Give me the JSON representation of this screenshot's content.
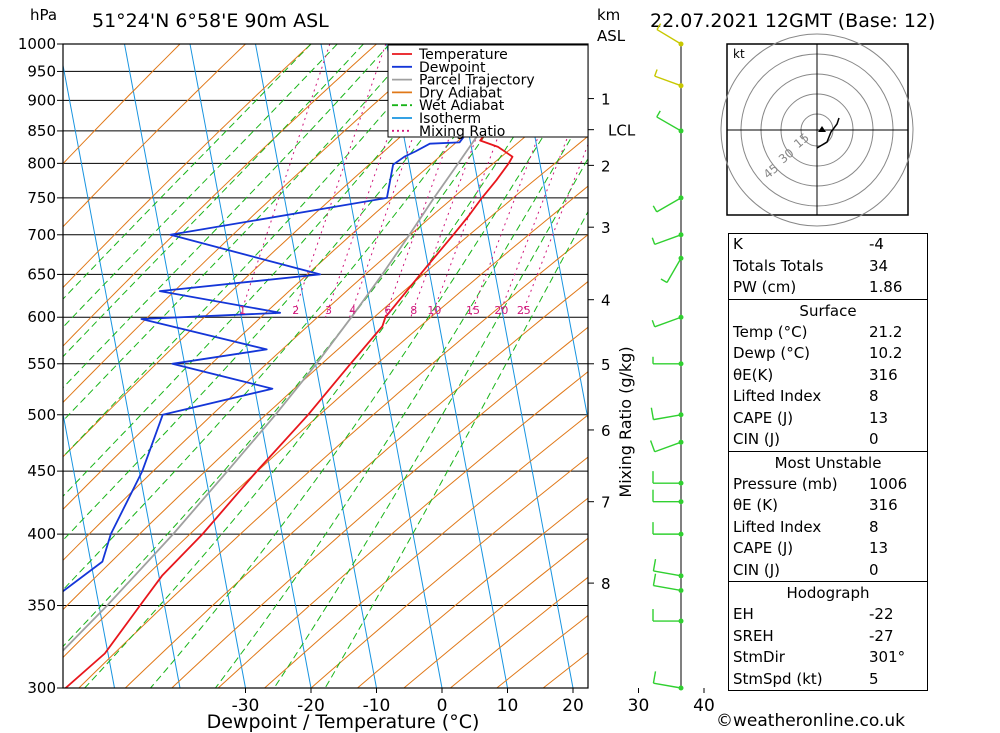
{
  "header": {
    "pressure_unit": "hPa",
    "location": "51°24'N  6°58'E  90m  ASL",
    "height_unit": "km",
    "height_unit2": "ASL",
    "datetime": "22.07.2021  12GMT  (Base: 12)"
  },
  "footer": {
    "copyright": "©weatheronline.co.uk"
  },
  "chart_data": {
    "type": "line",
    "title": "",
    "xlabel": "Dewpoint / Temperature (°C)",
    "ylabel": "hPa",
    "y2label": "Mixing Ratio (g/kg)",
    "xlim": [
      -40,
      40
    ],
    "ylim": [
      1000,
      300
    ],
    "y_scale": "log",
    "skew": true,
    "x_ticks": [
      "-30",
      "-20",
      "-10",
      "0",
      "10",
      "20",
      "30",
      "40"
    ],
    "pressure_ticks": [
      300,
      350,
      400,
      450,
      500,
      550,
      600,
      650,
      700,
      750,
      800,
      850,
      900,
      950,
      1000
    ],
    "height_ticks": [
      {
        "label": "8",
        "p": 365
      },
      {
        "label": "7",
        "p": 425
      },
      {
        "label": "6",
        "p": 486
      },
      {
        "label": "5",
        "p": 550
      },
      {
        "label": "4",
        "p": 620
      },
      {
        "label": "3",
        "p": 710
      },
      {
        "label": "2",
        "p": 797
      },
      {
        "label": "LCL",
        "p": 852
      },
      {
        "label": "1",
        "p": 903
      }
    ],
    "mixing_ratio_labels": [
      "1",
      "2",
      "3",
      "4",
      "6",
      "8",
      "10",
      "15",
      "20",
      "25"
    ],
    "mixing_ratio_label_pressure": 600,
    "legend": [
      {
        "name": "Temperature",
        "color": "#e8161c"
      },
      {
        "name": "Dewpoint",
        "color": "#1436d8"
      },
      {
        "name": "Parcel Trajectory",
        "color": "#a0a0a0"
      },
      {
        "name": "Dry Adiabat",
        "color": "#e07818"
      },
      {
        "name": "Wet Adiabat",
        "color": "#18b418"
      },
      {
        "name": "Isotherm",
        "color": "#1894e0"
      },
      {
        "name": "Mixing Ratio",
        "color": "#d0187c"
      }
    ],
    "legend_position": "top-right",
    "series": [
      {
        "name": "Temperature",
        "color": "#e8161c",
        "points": [
          [
            1000,
            21.2
          ],
          [
            975,
            19
          ],
          [
            950,
            16.8
          ],
          [
            925,
            15
          ],
          [
            900,
            13
          ],
          [
            875,
            11.2
          ],
          [
            850,
            9.5
          ],
          [
            835,
            8.6
          ],
          [
            825,
            11.5
          ],
          [
            810,
            14
          ],
          [
            800,
            13.6
          ],
          [
            775,
            12.2
          ],
          [
            750,
            10.5
          ],
          [
            725,
            9
          ],
          [
            700,
            7.2
          ],
          [
            650,
            3.3
          ],
          [
            600,
            -0.8
          ],
          [
            590,
            -1
          ],
          [
            550,
            -4.8
          ],
          [
            500,
            -9.8
          ],
          [
            450,
            -16
          ],
          [
            400,
            -22.5
          ],
          [
            370,
            -27.5
          ],
          [
            350,
            -30
          ],
          [
            320,
            -34
          ],
          [
            300,
            -39
          ]
        ]
      },
      {
        "name": "Dewpoint",
        "color": "#1436d8",
        "points": [
          [
            1000,
            10.2
          ],
          [
            975,
            10
          ],
          [
            950,
            10
          ],
          [
            925,
            9.3
          ],
          [
            900,
            8.3
          ],
          [
            875,
            7.5
          ],
          [
            850,
            6.5
          ],
          [
            832,
            5.5
          ],
          [
            830,
            1
          ],
          [
            818,
            -1
          ],
          [
            810,
            -2.5
          ],
          [
            798,
            -4
          ],
          [
            750,
            -4
          ],
          [
            700,
            -36
          ],
          [
            650,
            -12
          ],
          [
            630,
            -36
          ],
          [
            605,
            -17
          ],
          [
            598,
            -38
          ],
          [
            565,
            -18
          ],
          [
            550,
            -32
          ],
          [
            525,
            -16
          ],
          [
            500,
            -32
          ],
          [
            450,
            -33.5
          ],
          [
            400,
            -36.5
          ],
          [
            380,
            -37
          ],
          [
            345,
            -46
          ],
          [
            300,
            -50
          ]
        ]
      },
      {
        "name": "Parcel Trajectory",
        "color": "#a0a0a0",
        "points": [
          [
            1000,
            21.2
          ],
          [
            950,
            16.8
          ],
          [
            900,
            12.5
          ],
          [
            850,
            8.4
          ],
          [
            800,
            5.9
          ],
          [
            750,
            3.2
          ],
          [
            700,
            0.5
          ],
          [
            650,
            -2.5
          ],
          [
            600,
            -6
          ],
          [
            550,
            -10
          ],
          [
            500,
            -14.8
          ],
          [
            450,
            -20.5
          ],
          [
            400,
            -27
          ],
          [
            350,
            -35
          ],
          [
            300,
            -45
          ]
        ]
      }
    ],
    "wind_barbs": [
      {
        "p": 1000,
        "dir": 301,
        "kt": 5
      },
      {
        "p": 925,
        "dir": 290,
        "kt": 5
      },
      {
        "p": 850,
        "dir": 300,
        "kt": 5
      },
      {
        "p": 750,
        "dir": 240,
        "kt": 5
      },
      {
        "p": 700,
        "dir": 250,
        "kt": 5
      },
      {
        "p": 670,
        "dir": 210,
        "kt": 5
      },
      {
        "p": 600,
        "dir": 250,
        "kt": 5
      },
      {
        "p": 550,
        "dir": 270,
        "kt": 5
      },
      {
        "p": 500,
        "dir": 260,
        "kt": 10
      },
      {
        "p": 475,
        "dir": 250,
        "kt": 10
      },
      {
        "p": 440,
        "dir": 270,
        "kt": 10
      },
      {
        "p": 425,
        "dir": 270,
        "kt": 10
      },
      {
        "p": 400,
        "dir": 270,
        "kt": 10
      },
      {
        "p": 370,
        "dir": 280,
        "kt": 10
      },
      {
        "p": 360,
        "dir": 280,
        "kt": 10
      },
      {
        "p": 340,
        "dir": 270,
        "kt": 10
      },
      {
        "p": 300,
        "dir": 280,
        "kt": 10
      }
    ]
  },
  "hodograph": {
    "unit": "kt",
    "rings": [
      "15",
      "30",
      "45"
    ]
  },
  "indices": {
    "top": [
      {
        "label": "K",
        "value": "-4"
      },
      {
        "label": "Totals Totals",
        "value": "34"
      },
      {
        "label": "PW (cm)",
        "value": "1.86"
      }
    ],
    "surface_title": "Surface",
    "surface": [
      {
        "label": "Temp (°C)",
        "value": "21.2"
      },
      {
        "label": "Dewp (°C)",
        "value": "10.2"
      },
      {
        "label": "θE(K)",
        "value": "316"
      },
      {
        "label": "Lifted Index",
        "value": "8"
      },
      {
        "label": "CAPE (J)",
        "value": "13"
      },
      {
        "label": "CIN (J)",
        "value": "0"
      }
    ],
    "mu_title": "Most Unstable",
    "mu": [
      {
        "label": "Pressure (mb)",
        "value": "1006"
      },
      {
        "label": "θE (K)",
        "value": "316"
      },
      {
        "label": "Lifted Index",
        "value": "8"
      },
      {
        "label": "CAPE (J)",
        "value": "13"
      },
      {
        "label": "CIN (J)",
        "value": "0"
      }
    ],
    "hodo_title": "Hodograph",
    "hodo": [
      {
        "label": "EH",
        "value": "-22"
      },
      {
        "label": "SREH",
        "value": "-27"
      },
      {
        "label": "StmDir",
        "value": "301°"
      },
      {
        "label": "StmSpd (kt)",
        "value": "5"
      }
    ]
  }
}
